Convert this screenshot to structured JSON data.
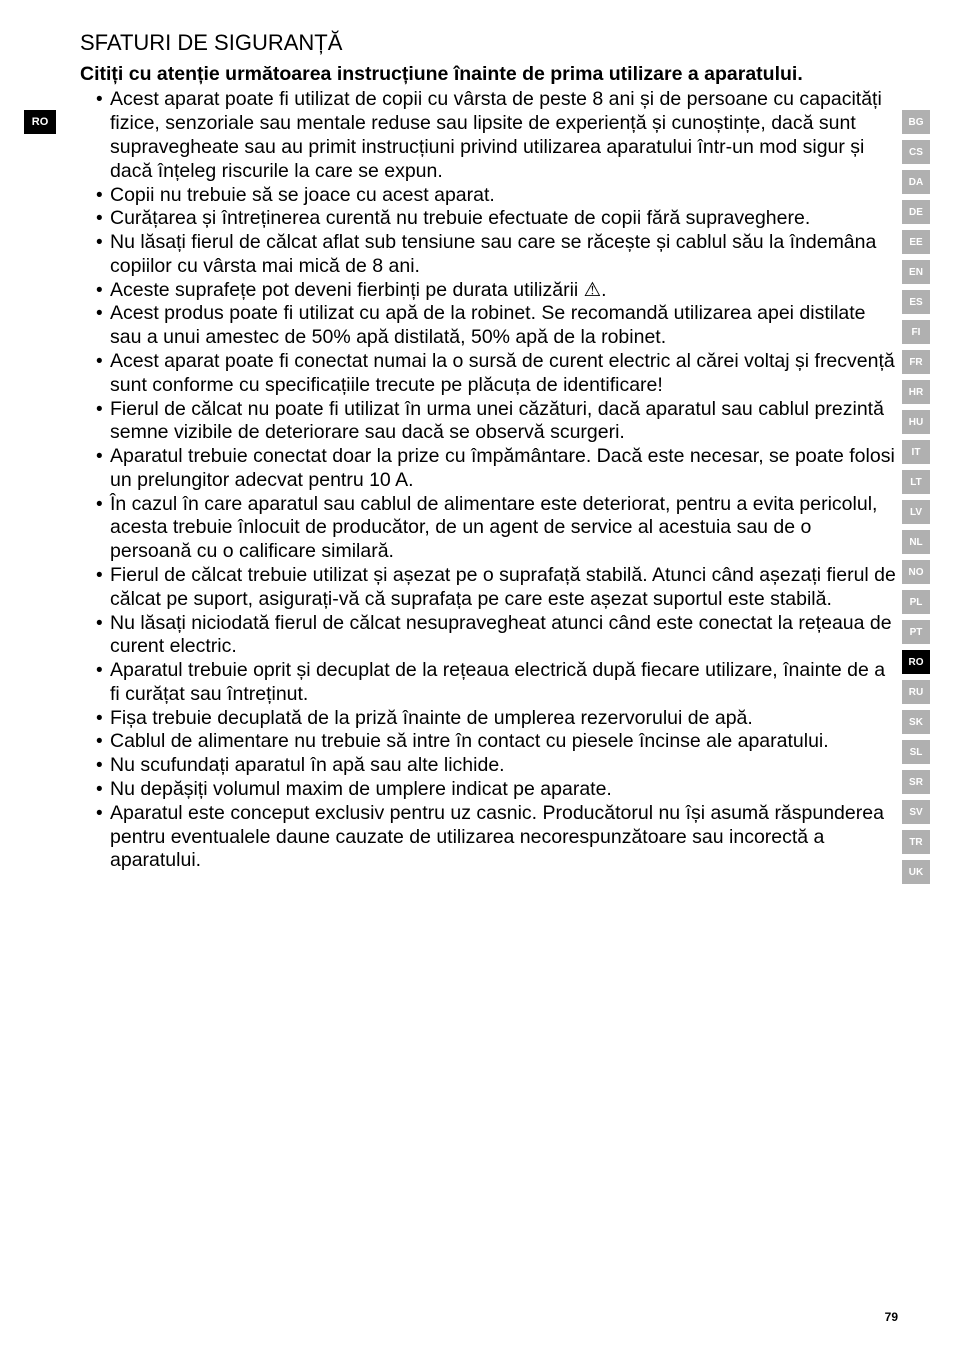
{
  "left_tab": "RO",
  "right_tabs": [
    {
      "code": "BG",
      "active": false
    },
    {
      "code": "CS",
      "active": false
    },
    {
      "code": "DA",
      "active": false
    },
    {
      "code": "DE",
      "active": false
    },
    {
      "code": "EE",
      "active": false
    },
    {
      "code": "EN",
      "active": false
    },
    {
      "code": "ES",
      "active": false
    },
    {
      "code": "FI",
      "active": false
    },
    {
      "code": "FR",
      "active": false
    },
    {
      "code": "HR",
      "active": false
    },
    {
      "code": "HU",
      "active": false
    },
    {
      "code": "IT",
      "active": false
    },
    {
      "code": "LT",
      "active": false
    },
    {
      "code": "LV",
      "active": false
    },
    {
      "code": "NL",
      "active": false
    },
    {
      "code": "NO",
      "active": false
    },
    {
      "code": "PL",
      "active": false
    },
    {
      "code": "PT",
      "active": false
    },
    {
      "code": "RO",
      "active": true
    },
    {
      "code": "RU",
      "active": false
    },
    {
      "code": "SK",
      "active": false
    },
    {
      "code": "SL",
      "active": false
    },
    {
      "code": "SR",
      "active": false
    },
    {
      "code": "SV",
      "active": false
    },
    {
      "code": "TR",
      "active": false
    },
    {
      "code": "UK",
      "active": false
    }
  ],
  "section_title": "SFATURI DE SIGURANȚĂ",
  "intro_bold": "Citiți cu atenție următoarea instrucțiune înainte de prima utilizare a aparatului.",
  "bullets": [
    "Acest aparat poate fi utilizat de copii cu vârsta de peste 8 ani și de persoane cu capacități fizice, senzoriale sau mentale reduse sau lipsite de experiență și cunoștințe, dacă sunt supravegheate sau au primit instrucțiuni privind utilizarea aparatului într-un mod sigur și dacă înțeleg riscurile la care se expun.",
    "Copii nu trebuie să se joace cu acest aparat.",
    "Curățarea și întreținerea curentă nu trebuie efectuate de copii fără supraveghere.",
    "Nu lăsați fierul de călcat aflat sub tensiune sau care se răcește și cablul său la îndemâna copiilor cu vârsta mai mică de 8 ani.",
    "Aceste suprafețe pot deveni fierbinți pe durata utilizării ⚠.",
    "Acest produs poate fi utilizat cu apă de la robinet. Se recomandă utilizarea apei distilate sau a unui amestec de 50% apă distilată, 50% apă de la robinet.",
    "Acest aparat poate fi conectat numai la o sursă de curent electric al cărei voltaj și frecvență sunt conforme cu specificațiile trecute pe plăcuța de identificare!",
    "Fierul de călcat nu poate fi utilizat în urma unei căzături, dacă aparatul sau cablul prezintă semne vizibile de deteriorare sau dacă se observă scurgeri.",
    "Aparatul trebuie conectat doar la prize cu împământare. Dacă este necesar, se poate folosi un prelungitor adecvat pentru 10 A.",
    "În cazul în care aparatul sau cablul de alimentare este deteriorat, pentru a evita pericolul, acesta trebuie înlocuit de producător, de un agent de service al acestuia sau de o persoană cu o calificare similară.",
    "Fierul de călcat trebuie utilizat și așezat pe o suprafață stabilă. Atunci când așezați fierul de călcat pe suport, asigurați-vă că suprafața pe care este așezat suportul este stabilă.",
    "Nu lăsați niciodată fierul de călcat nesupravegheat atunci când este conectat la rețeaua de curent electric.",
    "Aparatul trebuie oprit și decuplat de la rețeaua electrică după fiecare utilizare, înainte de a fi curățat sau întreținut.",
    "Fișa trebuie decuplată de la priză înainte de umplerea rezervorului de apă.",
    "Cablul de alimentare nu trebuie să intre în contact cu piesele încinse ale aparatului.",
    "Nu scufundați aparatul în apă sau alte lichide.",
    "Nu depășiți volumul maxim de umplere indicat pe aparate.",
    "Aparatul este conceput exclusiv pentru uz casnic. Producătorul nu își asumă răspunderea pentru eventualele daune cauzate de utilizarea necorespunzătoare sau incorectă a aparatului."
  ],
  "page_number": "79",
  "colors": {
    "background": "#ffffff",
    "text": "#000000",
    "tab_inactive_bg": "#b0b0b0",
    "tab_active_bg": "#000000",
    "tab_text": "#ffffff"
  }
}
